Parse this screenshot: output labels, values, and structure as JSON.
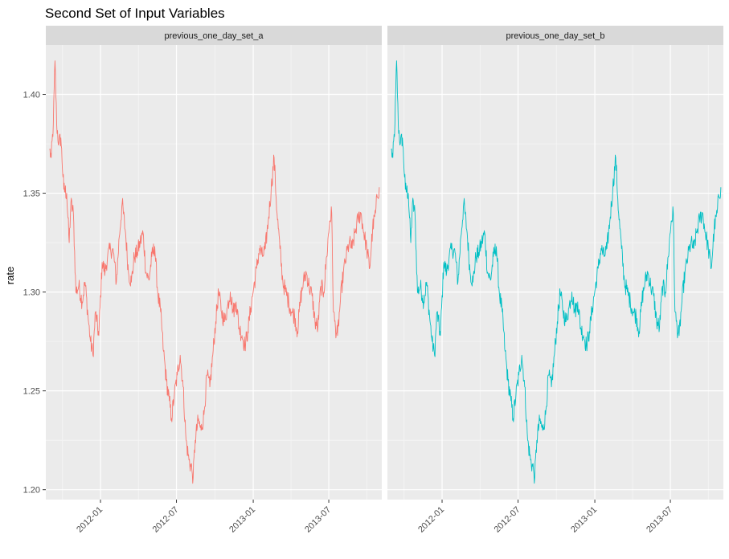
{
  "chart_data": {
    "type": "line",
    "title": "Second Set of Input Variables",
    "xlabel": "",
    "ylabel": "rate",
    "ylim": [
      1.195,
      1.425
    ],
    "xlim": [
      "2011-08-23",
      "2013-11-05"
    ],
    "yticks": [
      "1.20",
      "1.25",
      "1.30",
      "1.35",
      "1.40"
    ],
    "xticks": [
      {
        "date": "2012-01-01",
        "label": "2012-01"
      },
      {
        "date": "2012-07-01",
        "label": "2012-07"
      },
      {
        "date": "2013-01-01",
        "label": "2013-01"
      },
      {
        "date": "2013-07-01",
        "label": "2013-07"
      }
    ],
    "grid": true,
    "legend": "none",
    "panels": [
      {
        "name": "previous_one_day_set_a",
        "color": "#F8766D"
      },
      {
        "name": "previous_one_day_set_b",
        "color": "#00BFC4"
      }
    ],
    "series_points": [
      [
        "2011-09-01",
        1.372
      ],
      [
        "2011-09-05",
        1.368
      ],
      [
        "2011-09-10",
        1.385
      ],
      [
        "2011-09-14",
        1.417
      ],
      [
        "2011-09-18",
        1.385
      ],
      [
        "2011-09-23",
        1.375
      ],
      [
        "2011-09-28",
        1.378
      ],
      [
        "2011-10-05",
        1.352
      ],
      [
        "2011-10-12",
        1.35
      ],
      [
        "2011-10-18",
        1.325
      ],
      [
        "2011-10-22",
        1.345
      ],
      [
        "2011-10-28",
        1.34
      ],
      [
        "2011-11-03",
        1.3
      ],
      [
        "2011-11-10",
        1.303
      ],
      [
        "2011-11-18",
        1.295
      ],
      [
        "2011-11-25",
        1.305
      ],
      [
        "2011-12-02",
        1.288
      ],
      [
        "2011-12-08",
        1.275
      ],
      [
        "2011-12-14",
        1.268
      ],
      [
        "2011-12-20",
        1.29
      ],
      [
        "2011-12-28",
        1.278
      ],
      [
        "2012-01-05",
        1.315
      ],
      [
        "2012-01-12",
        1.31
      ],
      [
        "2012-01-18",
        1.318
      ],
      [
        "2012-01-25",
        1.322
      ],
      [
        "2012-02-01",
        1.32
      ],
      [
        "2012-02-08",
        1.305
      ],
      [
        "2012-02-15",
        1.328
      ],
      [
        "2012-02-22",
        1.345
      ],
      [
        "2012-03-01",
        1.33
      ],
      [
        "2012-03-08",
        1.31
      ],
      [
        "2012-03-15",
        1.305
      ],
      [
        "2012-03-22",
        1.318
      ],
      [
        "2012-03-29",
        1.32
      ],
      [
        "2012-04-05",
        1.325
      ],
      [
        "2012-04-12",
        1.33
      ],
      [
        "2012-04-19",
        1.31
      ],
      [
        "2012-04-26",
        1.306
      ],
      [
        "2012-05-03",
        1.318
      ],
      [
        "2012-05-10",
        1.323
      ],
      [
        "2012-05-17",
        1.3
      ],
      [
        "2012-05-24",
        1.29
      ],
      [
        "2012-05-31",
        1.27
      ],
      [
        "2012-06-07",
        1.255
      ],
      [
        "2012-06-14",
        1.245
      ],
      [
        "2012-06-19",
        1.236
      ],
      [
        "2012-06-26",
        1.248
      ],
      [
        "2012-07-03",
        1.258
      ],
      [
        "2012-07-10",
        1.268
      ],
      [
        "2012-07-17",
        1.252
      ],
      [
        "2012-07-24",
        1.225
      ],
      [
        "2012-07-31",
        1.215
      ],
      [
        "2012-08-07",
        1.21
      ],
      [
        "2012-08-10",
        1.206
      ],
      [
        "2012-08-15",
        1.225
      ],
      [
        "2012-08-22",
        1.235
      ],
      [
        "2012-08-29",
        1.23
      ],
      [
        "2012-09-05",
        1.238
      ],
      [
        "2012-09-12",
        1.258
      ],
      [
        "2012-09-19",
        1.252
      ],
      [
        "2012-09-26",
        1.268
      ],
      [
        "2012-10-03",
        1.285
      ],
      [
        "2012-10-10",
        1.3
      ],
      [
        "2012-10-17",
        1.29
      ],
      [
        "2012-10-24",
        1.285
      ],
      [
        "2012-10-31",
        1.292
      ],
      [
        "2012-11-07",
        1.3
      ],
      [
        "2012-11-14",
        1.29
      ],
      [
        "2012-11-21",
        1.295
      ],
      [
        "2012-11-28",
        1.282
      ],
      [
        "2012-12-05",
        1.278
      ],
      [
        "2012-12-12",
        1.273
      ],
      [
        "2012-12-19",
        1.28
      ],
      [
        "2012-12-26",
        1.292
      ],
      [
        "2013-01-02",
        1.302
      ],
      [
        "2013-01-09",
        1.312
      ],
      [
        "2013-01-16",
        1.322
      ],
      [
        "2013-01-23",
        1.318
      ],
      [
        "2013-01-30",
        1.322
      ],
      [
        "2013-02-06",
        1.336
      ],
      [
        "2013-02-13",
        1.352
      ],
      [
        "2013-02-20",
        1.368
      ],
      [
        "2013-02-27",
        1.34
      ],
      [
        "2013-03-06",
        1.322
      ],
      [
        "2013-03-13",
        1.305
      ],
      [
        "2013-03-20",
        1.3
      ],
      [
        "2013-03-27",
        1.295
      ],
      [
        "2013-04-03",
        1.29
      ],
      [
        "2013-04-10",
        1.288
      ],
      [
        "2013-04-17",
        1.28
      ],
      [
        "2013-04-24",
        1.296
      ],
      [
        "2013-05-01",
        1.305
      ],
      [
        "2013-05-08",
        1.31
      ],
      [
        "2013-05-15",
        1.303
      ],
      [
        "2013-05-22",
        1.298
      ],
      [
        "2013-05-29",
        1.285
      ],
      [
        "2013-06-05",
        1.282
      ],
      [
        "2013-06-12",
        1.303
      ],
      [
        "2013-06-19",
        1.3
      ],
      [
        "2013-06-26",
        1.318
      ],
      [
        "2013-07-03",
        1.336
      ],
      [
        "2013-07-08",
        1.34
      ],
      [
        "2013-07-12",
        1.29
      ],
      [
        "2013-07-17",
        1.282
      ],
      [
        "2013-07-22",
        1.278
      ],
      [
        "2013-07-29",
        1.296
      ],
      [
        "2013-08-05",
        1.31
      ],
      [
        "2013-08-12",
        1.318
      ],
      [
        "2013-08-19",
        1.325
      ],
      [
        "2013-08-26",
        1.322
      ],
      [
        "2013-09-02",
        1.33
      ],
      [
        "2013-09-09",
        1.337
      ],
      [
        "2013-09-16",
        1.34
      ],
      [
        "2013-09-23",
        1.33
      ],
      [
        "2013-09-30",
        1.322
      ],
      [
        "2013-10-07",
        1.312
      ],
      [
        "2013-10-14",
        1.332
      ],
      [
        "2013-10-21",
        1.34
      ],
      [
        "2013-10-25",
        1.348
      ],
      [
        "2013-10-30",
        1.353
      ]
    ]
  }
}
